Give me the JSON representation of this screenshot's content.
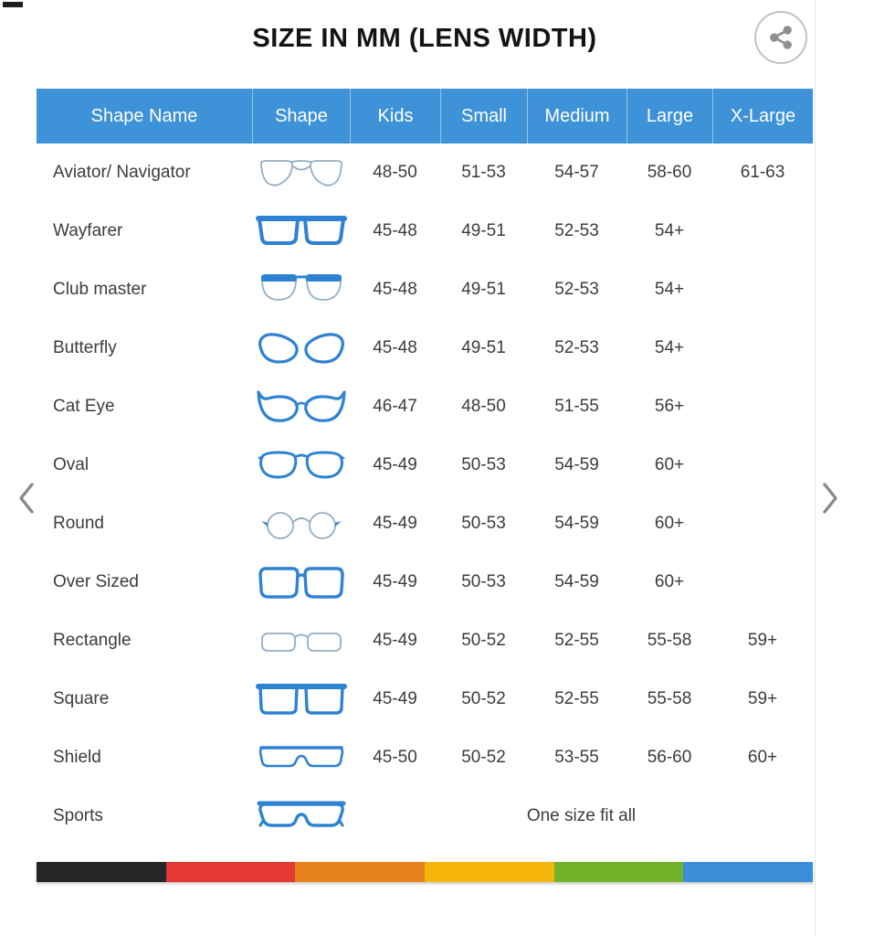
{
  "title": "SIZE IN MM (LENS WIDTH)",
  "share": {
    "icon": "share-icon"
  },
  "carousel": {
    "prev_icon": "chevron-left-icon",
    "next_icon": "chevron-right-icon"
  },
  "table": {
    "columns": [
      "Shape Name",
      "Shape",
      "Kids",
      "Small",
      "Medium",
      "Large",
      "X-Large"
    ],
    "rows": [
      {
        "name": "Aviator/ Navigator",
        "icon": "aviator-glasses-icon",
        "sizes": [
          "48-50",
          "51-53",
          "54-57",
          "58-60",
          "61-63"
        ]
      },
      {
        "name": "Wayfarer",
        "icon": "wayfarer-glasses-icon",
        "sizes": [
          "45-48",
          "49-51",
          "52-53",
          "54+",
          ""
        ]
      },
      {
        "name": "Club master",
        "icon": "clubmaster-glasses-icon",
        "sizes": [
          "45-48",
          "49-51",
          "52-53",
          "54+",
          ""
        ]
      },
      {
        "name": "Butterfly",
        "icon": "butterfly-glasses-icon",
        "sizes": [
          "45-48",
          "49-51",
          "52-53",
          "54+",
          ""
        ]
      },
      {
        "name": "Cat Eye",
        "icon": "cateye-glasses-icon",
        "sizes": [
          "46-47",
          "48-50",
          "51-55",
          "56+",
          ""
        ]
      },
      {
        "name": "Oval",
        "icon": "oval-glasses-icon",
        "sizes": [
          "45-49",
          "50-53",
          "54-59",
          "60+",
          ""
        ]
      },
      {
        "name": "Round",
        "icon": "round-glasses-icon",
        "sizes": [
          "45-49",
          "50-53",
          "54-59",
          "60+",
          ""
        ]
      },
      {
        "name": "Over Sized",
        "icon": "oversized-glasses-icon",
        "sizes": [
          "45-49",
          "50-53",
          "54-59",
          "60+",
          ""
        ]
      },
      {
        "name": "Rectangle",
        "icon": "rectangle-glasses-icon",
        "sizes": [
          "45-49",
          "50-52",
          "52-55",
          "55-58",
          "59+"
        ]
      },
      {
        "name": "Square",
        "icon": "square-glasses-icon",
        "sizes": [
          "45-49",
          "50-52",
          "52-55",
          "55-58",
          "59+"
        ]
      },
      {
        "name": "Shield",
        "icon": "shield-glasses-icon",
        "sizes": [
          "45-50",
          "50-52",
          "53-55",
          "56-60",
          "60+"
        ]
      },
      {
        "name": "Sports",
        "icon": "sports-glasses-icon",
        "sizes": [],
        "span_text": "One size fit all"
      }
    ]
  },
  "colors": {
    "header_bg": "#3d92d8",
    "header_text": "#ffffff",
    "frame_blue": "#2e82d4",
    "outline_gray": "#92aec6",
    "body_text": "#3c3c3c",
    "stripe": [
      "#262626",
      "#e53935",
      "#e8821e",
      "#f5b50a",
      "#72b32c",
      "#3b8fd8"
    ]
  }
}
